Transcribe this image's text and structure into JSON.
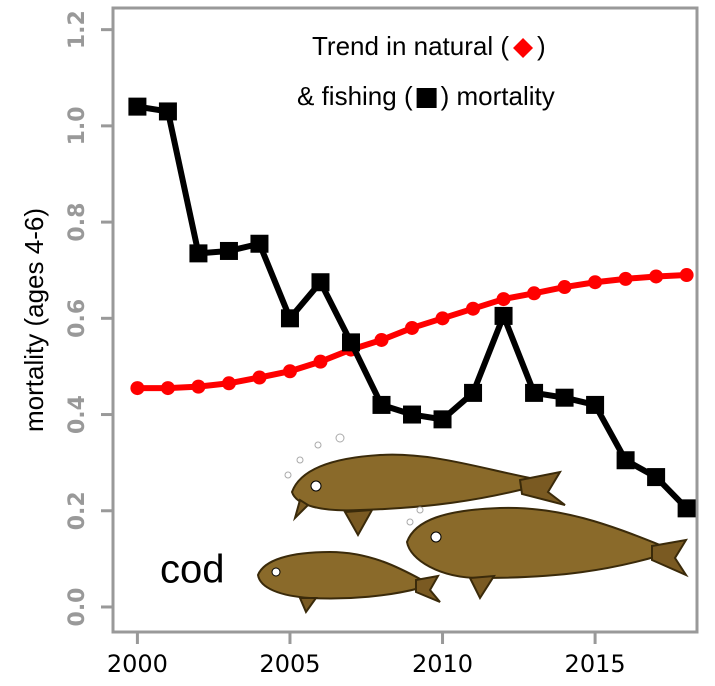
{
  "chart_data": {
    "type": "line",
    "ylabel": "mortality (ages 4-6)",
    "annotation_lines": [
      [
        "Trend in natural (",
        ")"
      ],
      [
        "& fishing (",
        ") mortality"
      ]
    ],
    "image_label": "cod",
    "x": [
      2000,
      2001,
      2002,
      2003,
      2004,
      2005,
      2006,
      2007,
      2008,
      2009,
      2010,
      2011,
      2012,
      2013,
      2014,
      2015,
      2016,
      2017,
      2018
    ],
    "series": [
      {
        "color": "#ff0000",
        "marker": "diamond",
        "values": [
          0.455,
          0.455,
          0.458,
          0.465,
          0.477,
          0.49,
          0.51,
          0.535,
          0.555,
          0.58,
          0.6,
          0.62,
          0.64,
          0.652,
          0.665,
          0.675,
          0.682,
          0.687,
          0.69
        ]
      },
      {
        "color": "#000000",
        "marker": "square",
        "values": [
          1.04,
          1.03,
          0.735,
          0.74,
          0.755,
          0.6,
          0.675,
          0.55,
          0.42,
          0.4,
          0.39,
          0.445,
          0.605,
          0.445,
          0.435,
          0.42,
          0.305,
          0.27,
          0.205
        ]
      }
    ],
    "xlim": [
      1999.2,
      2018.34
    ],
    "xticks": [
      2000,
      2005,
      2010,
      2015
    ],
    "ylim": [
      -0.052,
      1.245
    ],
    "yticks": [
      {
        "value": 0,
        "label": "0.0"
      },
      0.2,
      0.4,
      0.6,
      0.8,
      {
        "value": 1,
        "label": "1.0"
      },
      1.2
    ]
  }
}
